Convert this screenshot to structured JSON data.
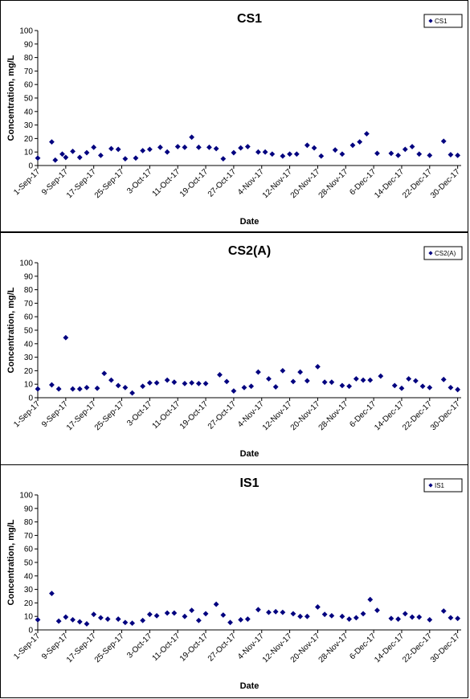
{
  "chart_data": [
    {
      "type": "scatter",
      "title": "CS1",
      "xlabel": "Date",
      "ylabel": "Concentration, mg/L",
      "ylim": [
        0,
        100
      ],
      "yticks": [
        0,
        10,
        20,
        30,
        40,
        50,
        60,
        70,
        80,
        90,
        100
      ],
      "xlim": [
        "2017-09-01",
        "2017-12-31"
      ],
      "xtick_labels": [
        "1-Sep-17",
        "9-Sep-17",
        "17-Sep-17",
        "25-Sep-17",
        "3-Oct-17",
        "11-Oct-17",
        "19-Oct-17",
        "27-Oct-17",
        "4-Nov-17",
        "12-Nov-17",
        "20-Nov-17",
        "28-Nov-17",
        "6-Dec-17",
        "14-Dec-17",
        "22-Dec-17",
        "30-Dec-17"
      ],
      "xtick_dates": [
        "2017-09-01",
        "2017-09-09",
        "2017-09-17",
        "2017-09-25",
        "2017-10-03",
        "2017-10-11",
        "2017-10-19",
        "2017-10-27",
        "2017-11-04",
        "2017-11-12",
        "2017-11-20",
        "2017-11-28",
        "2017-12-06",
        "2017-12-14",
        "2017-12-22",
        "2017-12-30"
      ],
      "grid": false,
      "legend_position": "top-right",
      "color": "#00007F",
      "series": [
        {
          "name": "CS1",
          "points": [
            [
              "2017-09-01",
              5.5
            ],
            [
              "2017-09-05",
              17.5
            ],
            [
              "2017-09-06",
              4
            ],
            [
              "2017-09-08",
              8.5
            ],
            [
              "2017-09-09",
              6
            ],
            [
              "2017-09-11",
              10.5
            ],
            [
              "2017-09-13",
              6
            ],
            [
              "2017-09-15",
              9.5
            ],
            [
              "2017-09-17",
              13.5
            ],
            [
              "2017-09-19",
              7.5
            ],
            [
              "2017-09-22",
              12.5
            ],
            [
              "2017-09-24",
              12
            ],
            [
              "2017-09-26",
              5
            ],
            [
              "2017-09-29",
              5.5
            ],
            [
              "2017-10-01",
              11
            ],
            [
              "2017-10-03",
              12
            ],
            [
              "2017-10-06",
              13.5
            ],
            [
              "2017-10-08",
              10
            ],
            [
              "2017-10-11",
              14
            ],
            [
              "2017-10-13",
              13.5
            ],
            [
              "2017-10-15",
              21
            ],
            [
              "2017-10-17",
              13.5
            ],
            [
              "2017-10-20",
              13.5
            ],
            [
              "2017-10-22",
              12.5
            ],
            [
              "2017-10-24",
              5
            ],
            [
              "2017-10-27",
              9.5
            ],
            [
              "2017-10-29",
              13
            ],
            [
              "2017-10-31",
              14
            ],
            [
              "2017-11-03",
              10
            ],
            [
              "2017-11-05",
              10
            ],
            [
              "2017-11-07",
              8.5
            ],
            [
              "2017-11-10",
              7
            ],
            [
              "2017-11-12",
              8.5
            ],
            [
              "2017-11-14",
              8.5
            ],
            [
              "2017-11-17",
              15
            ],
            [
              "2017-11-19",
              13
            ],
            [
              "2017-11-21",
              7
            ],
            [
              "2017-11-25",
              11.5
            ],
            [
              "2017-11-27",
              8.5
            ],
            [
              "2017-11-30",
              15
            ],
            [
              "2017-12-02",
              17.5
            ],
            [
              "2017-12-04",
              23.5
            ],
            [
              "2017-12-07",
              9
            ],
            [
              "2017-12-11",
              9
            ],
            [
              "2017-12-13",
              7.5
            ],
            [
              "2017-12-15",
              12
            ],
            [
              "2017-12-17",
              14
            ],
            [
              "2017-12-19",
              8.5
            ],
            [
              "2017-12-22",
              7.5
            ],
            [
              "2017-12-26",
              18
            ],
            [
              "2017-12-28",
              8
            ],
            [
              "2017-12-30",
              7.5
            ]
          ]
        }
      ]
    },
    {
      "type": "scatter",
      "title": "CS2(A)",
      "xlabel": "Date",
      "ylabel": "Concentration, mg/L",
      "ylim": [
        0,
        100
      ],
      "yticks": [
        0,
        10,
        20,
        30,
        40,
        50,
        60,
        70,
        80,
        90,
        100
      ],
      "xlim": [
        "2017-09-01",
        "2017-12-31"
      ],
      "xtick_labels": [
        "1-Sep-17",
        "9-Sep-17",
        "17-Sep-17",
        "25-Sep-17",
        "3-Oct-17",
        "11-Oct-17",
        "19-Oct-17",
        "27-Oct-17",
        "4-Nov-17",
        "12-Nov-17",
        "20-Nov-17",
        "28-Nov-17",
        "6-Dec-17",
        "14-Dec-17",
        "22-Dec-17",
        "30-Dec-17"
      ],
      "xtick_dates": [
        "2017-09-01",
        "2017-09-09",
        "2017-09-17",
        "2017-09-25",
        "2017-10-03",
        "2017-10-11",
        "2017-10-19",
        "2017-10-27",
        "2017-11-04",
        "2017-11-12",
        "2017-11-20",
        "2017-11-28",
        "2017-12-06",
        "2017-12-14",
        "2017-12-22",
        "2017-12-30"
      ],
      "grid": false,
      "legend_position": "top-right",
      "color": "#00007F",
      "series": [
        {
          "name": "CS2(A)",
          "points": [
            [
              "2017-09-01",
              6.5
            ],
            [
              "2017-09-05",
              9.5
            ],
            [
              "2017-09-07",
              6.5
            ],
            [
              "2017-09-09",
              44.5
            ],
            [
              "2017-09-11",
              6.5
            ],
            [
              "2017-09-13",
              6.5
            ],
            [
              "2017-09-15",
              7.5
            ],
            [
              "2017-09-18",
              7
            ],
            [
              "2017-09-20",
              18
            ],
            [
              "2017-09-22",
              13
            ],
            [
              "2017-09-24",
              9
            ],
            [
              "2017-09-26",
              7.5
            ],
            [
              "2017-09-28",
              3.5
            ],
            [
              "2017-10-01",
              8.5
            ],
            [
              "2017-10-03",
              11
            ],
            [
              "2017-10-05",
              11
            ],
            [
              "2017-10-08",
              13
            ],
            [
              "2017-10-10",
              11.5
            ],
            [
              "2017-10-13",
              10.5
            ],
            [
              "2017-10-15",
              11
            ],
            [
              "2017-10-17",
              10.5
            ],
            [
              "2017-10-19",
              10.5
            ],
            [
              "2017-10-23",
              17
            ],
            [
              "2017-10-25",
              12
            ],
            [
              "2017-10-27",
              5
            ],
            [
              "2017-10-30",
              7.5
            ],
            [
              "2017-11-01",
              8.5
            ],
            [
              "2017-11-03",
              19
            ],
            [
              "2017-11-06",
              14
            ],
            [
              "2017-11-08",
              8
            ],
            [
              "2017-11-10",
              20
            ],
            [
              "2017-11-13",
              12
            ],
            [
              "2017-11-15",
              19
            ],
            [
              "2017-11-17",
              12.5
            ],
            [
              "2017-11-20",
              23
            ],
            [
              "2017-11-22",
              11.5
            ],
            [
              "2017-11-24",
              11.5
            ],
            [
              "2017-11-27",
              9
            ],
            [
              "2017-11-29",
              8.5
            ],
            [
              "2017-12-01",
              14
            ],
            [
              "2017-12-03",
              13
            ],
            [
              "2017-12-05",
              13
            ],
            [
              "2017-12-08",
              16
            ],
            [
              "2017-12-12",
              9
            ],
            [
              "2017-12-14",
              7
            ],
            [
              "2017-12-16",
              14
            ],
            [
              "2017-12-18",
              12.5
            ],
            [
              "2017-12-20",
              8.5
            ],
            [
              "2017-12-22",
              7.5
            ],
            [
              "2017-12-26",
              13.5
            ],
            [
              "2017-12-28",
              7.5
            ],
            [
              "2017-12-30",
              6
            ]
          ]
        }
      ]
    },
    {
      "type": "scatter",
      "title": "IS1",
      "xlabel": "Date",
      "ylabel": "Concentration, mg/L",
      "ylim": [
        0,
        100
      ],
      "yticks": [
        0,
        10,
        20,
        30,
        40,
        50,
        60,
        70,
        80,
        90,
        100
      ],
      "xlim": [
        "2017-09-01",
        "2017-12-31"
      ],
      "xtick_labels": [
        "1-Sep-17",
        "9-Sep-17",
        "17-Sep-17",
        "25-Sep-17",
        "3-Oct-17",
        "11-Oct-17",
        "19-Oct-17",
        "27-Oct-17",
        "4-Nov-17",
        "12-Nov-17",
        "20-Nov-17",
        "28-Nov-17",
        "6-Dec-17",
        "14-Dec-17",
        "22-Dec-17",
        "30-Dec-17"
      ],
      "xtick_dates": [
        "2017-09-01",
        "2017-09-09",
        "2017-09-17",
        "2017-09-25",
        "2017-10-03",
        "2017-10-11",
        "2017-10-19",
        "2017-10-27",
        "2017-11-04",
        "2017-11-12",
        "2017-11-20",
        "2017-11-28",
        "2017-12-06",
        "2017-12-14",
        "2017-12-22",
        "2017-12-30"
      ],
      "grid": false,
      "legend_position": "top-right",
      "color": "#00007F",
      "series": [
        {
          "name": "IS1",
          "points": [
            [
              "2017-09-01",
              7.5
            ],
            [
              "2017-09-05",
              27
            ],
            [
              "2017-09-07",
              6.5
            ],
            [
              "2017-09-09",
              9.5
            ],
            [
              "2017-09-11",
              7.5
            ],
            [
              "2017-09-13",
              6
            ],
            [
              "2017-09-15",
              4.5
            ],
            [
              "2017-09-17",
              11.5
            ],
            [
              "2017-09-19",
              9
            ],
            [
              "2017-09-21",
              8
            ],
            [
              "2017-09-24",
              8
            ],
            [
              "2017-09-26",
              5.5
            ],
            [
              "2017-09-28",
              5
            ],
            [
              "2017-10-01",
              7
            ],
            [
              "2017-10-03",
              11.5
            ],
            [
              "2017-10-05",
              10.5
            ],
            [
              "2017-10-08",
              12.5
            ],
            [
              "2017-10-10",
              12.5
            ],
            [
              "2017-10-13",
              10
            ],
            [
              "2017-10-15",
              14.5
            ],
            [
              "2017-10-17",
              7
            ],
            [
              "2017-10-19",
              12
            ],
            [
              "2017-10-22",
              19
            ],
            [
              "2017-10-24",
              11
            ],
            [
              "2017-10-26",
              5.5
            ],
            [
              "2017-10-29",
              7.5
            ],
            [
              "2017-10-31",
              8
            ],
            [
              "2017-11-03",
              15
            ],
            [
              "2017-11-06",
              13
            ],
            [
              "2017-11-08",
              13.5
            ],
            [
              "2017-11-10",
              13
            ],
            [
              "2017-11-13",
              12
            ],
            [
              "2017-11-15",
              10
            ],
            [
              "2017-11-17",
              10
            ],
            [
              "2017-11-20",
              17
            ],
            [
              "2017-11-22",
              11.5
            ],
            [
              "2017-11-24",
              10.5
            ],
            [
              "2017-11-27",
              10
            ],
            [
              "2017-11-29",
              8
            ],
            [
              "2017-12-01",
              9
            ],
            [
              "2017-12-03",
              12
            ],
            [
              "2017-12-05",
              22.5
            ],
            [
              "2017-12-07",
              14.5
            ],
            [
              "2017-12-11",
              8.5
            ],
            [
              "2017-12-13",
              8
            ],
            [
              "2017-12-15",
              12
            ],
            [
              "2017-12-17",
              9.5
            ],
            [
              "2017-12-19",
              9.5
            ],
            [
              "2017-12-22",
              7.5
            ],
            [
              "2017-12-26",
              14
            ],
            [
              "2017-12-28",
              9
            ],
            [
              "2017-12-30",
              8.5
            ]
          ]
        }
      ]
    }
  ]
}
